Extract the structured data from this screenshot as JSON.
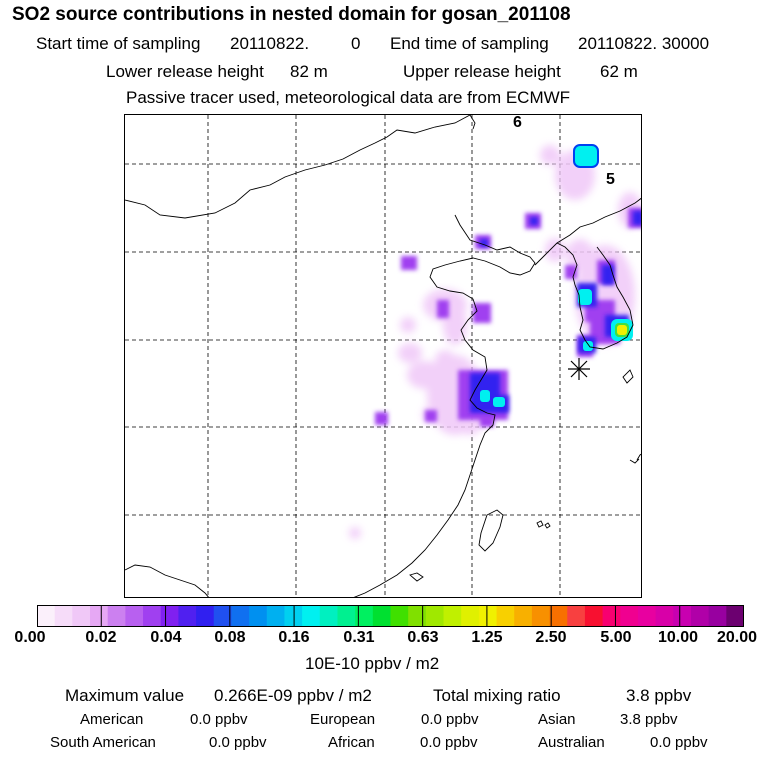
{
  "header": {
    "title": "SO2 source contributions in nested domain for gosan_201108",
    "start_label": "Start time of sampling",
    "start_value": "20110822.",
    "start_hour": "0",
    "end_label": "End time of sampling",
    "end_value": "20110822. 30000",
    "lower_label": "Lower release height",
    "lower_value": "82 m",
    "upper_label": "Upper release height",
    "upper_value": "62 m",
    "note": "Passive tracer used, meteorological data are from ECMWF"
  },
  "map": {
    "labels": [
      "6",
      "5"
    ],
    "colors": {
      "light": "#f0c8f8",
      "purple": "#a040f0",
      "blue": "#3020f0",
      "cyan": "#00f0f0",
      "green": "#40e040",
      "yellow": "#f0f000"
    }
  },
  "colorbar": {
    "ticks": [
      "0.00",
      "0.02",
      "0.04",
      "0.08",
      "0.16",
      "0.31",
      "0.63",
      "1.25",
      "2.50",
      "5.00",
      "10.00",
      "20.00"
    ],
    "unit": "10E-10 ppbv / m2",
    "colors": [
      "#fbf0fb",
      "#f6dcf9",
      "#f0c8f7",
      "#e6a8f4",
      "#cc80f0",
      "#b860f0",
      "#a040f0",
      "#8020f0",
      "#5020f0",
      "#3020f0",
      "#2050f0",
      "#1070f0",
      "#0090f0",
      "#00b0f0",
      "#00d0f0",
      "#00f0f0",
      "#00f0c0",
      "#00f090",
      "#00f060",
      "#00e030",
      "#40e000",
      "#80e000",
      "#a0e800",
      "#c0f000",
      "#e0f000",
      "#f0f000",
      "#f8d000",
      "#f8b000",
      "#f89000",
      "#f87000",
      "#f84040",
      "#f81030",
      "#f80070",
      "#f00090",
      "#e800a0",
      "#d800a8",
      "#c800b0",
      "#b000a8",
      "#9800a0",
      "#6c0070"
    ]
  },
  "summary": {
    "max_label": "Maximum value",
    "max_value": "0.266E-09 ppbv / m2",
    "total_label": "Total mixing ratio",
    "total_value": "3.8 ppbv",
    "regions": [
      {
        "name": "American",
        "value": "0.0 ppbv"
      },
      {
        "name": "European",
        "value": "0.0 ppbv"
      },
      {
        "name": "Asian",
        "value": "3.8 ppbv"
      },
      {
        "name": "South American",
        "value": "0.0 ppbv"
      },
      {
        "name": "African",
        "value": "0.0 ppbv"
      },
      {
        "name": "Australian",
        "value": "0.0 ppbv"
      }
    ]
  }
}
